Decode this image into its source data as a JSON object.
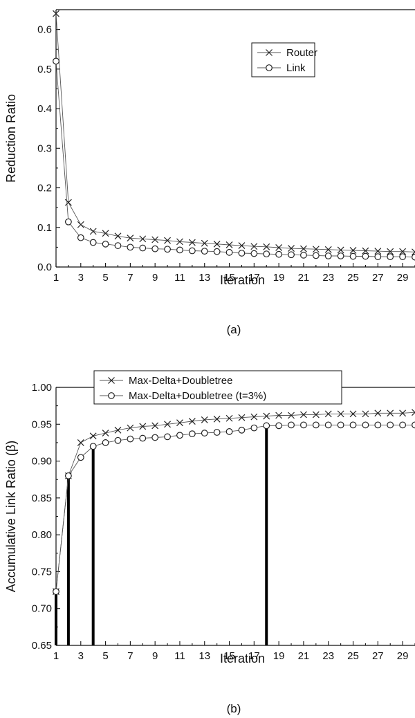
{
  "chart_data": [
    {
      "type": "line",
      "panel": "(a)",
      "xlabel": "Iteration",
      "ylabel": "Reduction Ratio",
      "xlim": [
        1,
        30
      ],
      "ylim": [
        0.0,
        0.65
      ],
      "x_ticks": [
        1,
        3,
        5,
        7,
        9,
        11,
        13,
        15,
        17,
        19,
        21,
        23,
        25,
        27,
        29
      ],
      "y_ticks": [
        "0.0",
        "0.1",
        "0.2",
        "0.3",
        "0.4",
        "0.5",
        "0.6"
      ],
      "grid": false,
      "legend_position": "top-right",
      "x": [
        1,
        2,
        3,
        4,
        5,
        6,
        7,
        8,
        9,
        10,
        11,
        12,
        13,
        14,
        15,
        16,
        17,
        18,
        19,
        20,
        21,
        22,
        23,
        24,
        25,
        26,
        27,
        28,
        29,
        30
      ],
      "series": [
        {
          "name": "Router",
          "marker": "x",
          "values": [
            0.64,
            0.163,
            0.107,
            0.09,
            0.085,
            0.078,
            0.073,
            0.071,
            0.069,
            0.067,
            0.064,
            0.062,
            0.06,
            0.058,
            0.056,
            0.054,
            0.052,
            0.051,
            0.049,
            0.047,
            0.046,
            0.045,
            0.044,
            0.043,
            0.042,
            0.041,
            0.04,
            0.039,
            0.039,
            0.038
          ]
        },
        {
          "name": "Link",
          "marker": "o",
          "values": [
            0.52,
            0.114,
            0.074,
            0.062,
            0.058,
            0.054,
            0.05,
            0.048,
            0.046,
            0.045,
            0.043,
            0.041,
            0.04,
            0.039,
            0.037,
            0.035,
            0.034,
            0.033,
            0.032,
            0.031,
            0.03,
            0.029,
            0.028,
            0.028,
            0.027,
            0.027,
            0.026,
            0.026,
            0.026,
            0.025
          ]
        }
      ]
    },
    {
      "type": "line",
      "panel": "(b)",
      "xlabel": "Iteration",
      "ylabel": "Accumulative Link Ratio (β)",
      "xlim": [
        1,
        30
      ],
      "ylim": [
        0.65,
        1.0
      ],
      "x_ticks": [
        1,
        3,
        5,
        7,
        9,
        11,
        13,
        15,
        17,
        19,
        21,
        23,
        25,
        27,
        29
      ],
      "y_ticks": [
        "0.65",
        "0.70",
        "0.75",
        "0.80",
        "0.85",
        "0.90",
        "0.95",
        "1.00"
      ],
      "grid": false,
      "legend_position": "top",
      "x": [
        1,
        2,
        3,
        4,
        5,
        6,
        7,
        8,
        9,
        10,
        11,
        12,
        13,
        14,
        15,
        16,
        17,
        18,
        19,
        20,
        21,
        22,
        23,
        24,
        25,
        26,
        27,
        28,
        29,
        30
      ],
      "series": [
        {
          "name": "Max-Delta+Doubletree",
          "marker": "x",
          "values": [
            0.723,
            0.88,
            0.925,
            0.934,
            0.938,
            0.942,
            0.945,
            0.947,
            0.948,
            0.95,
            0.952,
            0.954,
            0.956,
            0.957,
            0.958,
            0.959,
            0.96,
            0.961,
            0.962,
            0.962,
            0.963,
            0.963,
            0.964,
            0.964,
            0.964,
            0.964,
            0.965,
            0.965,
            0.965,
            0.966
          ]
        },
        {
          "name": "Max-Delta+Doubletree (t=3%)",
          "marker": "o",
          "values": [
            0.723,
            0.88,
            0.905,
            0.92,
            0.925,
            0.928,
            0.93,
            0.931,
            0.932,
            0.933,
            0.935,
            0.937,
            0.938,
            0.939,
            0.94,
            0.942,
            0.945,
            0.948,
            0.948,
            0.949,
            0.949,
            0.949,
            0.949,
            0.949,
            0.949,
            0.949,
            0.949,
            0.949,
            0.949,
            0.949
          ]
        }
      ],
      "stems": [
        {
          "x": 1,
          "value": 0.723
        },
        {
          "x": 2,
          "value": 0.88
        },
        {
          "x": 4,
          "value": 0.92
        },
        {
          "x": 18,
          "value": 0.948
        }
      ]
    }
  ],
  "captions": {
    "a": "(a)",
    "b": "(b)"
  }
}
